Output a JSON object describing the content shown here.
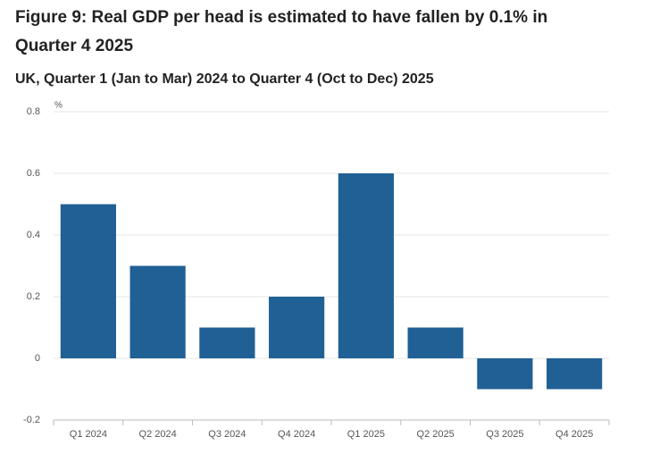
{
  "chart_data": {
    "type": "bar",
    "title": "Figure 9: Real GDP per head is estimated to have fallen by 0.1% in Quarter 4 2025",
    "subtitle": "UK, Quarter 1 (Jan to Mar) 2024 to Quarter 4 (Oct to Dec) 2025",
    "y_label": "%",
    "categories": [
      "Q1 2024",
      "Q2 2024",
      "Q3 2024",
      "Q4 2024",
      "Q1 2025",
      "Q2 2025",
      "Q3 2025",
      "Q4 2025"
    ],
    "values": [
      0.5,
      0.3,
      0.1,
      0.2,
      0.6,
      0.1,
      -0.1,
      -0.1
    ],
    "color": "#206095",
    "ylim": [
      -0.2,
      0.8
    ],
    "yticks": [
      -0.2,
      0,
      0.2,
      0.4,
      0.6,
      0.8
    ],
    "grid": true
  }
}
